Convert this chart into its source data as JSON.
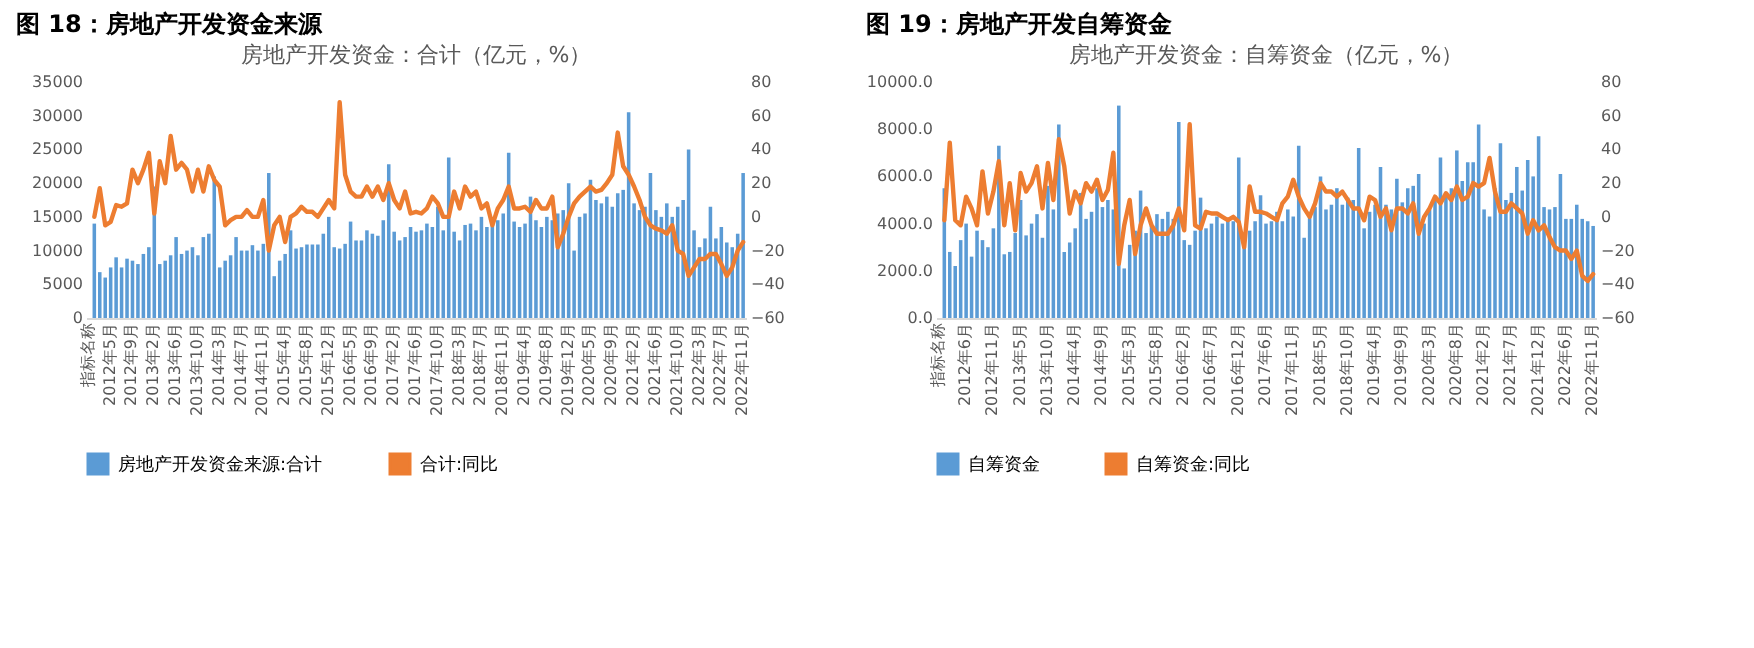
{
  "chart_data": [
    {
      "type": "bar",
      "title": "图 18：房地产开发资金来源",
      "subtitle": "房地产开发资金：合计（亿元，%）",
      "legend": "bottom",
      "categories": [
        "指标名称",
        null,
        null,
        null,
        "2012年5月",
        null,
        null,
        null,
        "2012年9月",
        null,
        null,
        null,
        "2013年2月",
        null,
        null,
        null,
        "2013年6月",
        null,
        null,
        null,
        "2013年10月",
        null,
        null,
        null,
        "2014年3月",
        null,
        null,
        null,
        "2014年7月",
        null,
        null,
        null,
        "2014年11月",
        null,
        null,
        null,
        "2015年4月",
        null,
        null,
        null,
        "2015年8月",
        null,
        null,
        null,
        "2015年12月",
        null,
        null,
        null,
        "2016年5月",
        null,
        null,
        null,
        "2016年9月",
        null,
        null,
        null,
        "2017年2月",
        null,
        null,
        null,
        "2017年6月",
        null,
        null,
        null,
        "2017年10月",
        null,
        null,
        null,
        "2018年3月",
        null,
        null,
        null,
        "2018年7月",
        null,
        null,
        null,
        "2018年11月",
        null,
        null,
        null,
        "2019年4月",
        null,
        null,
        null,
        "2019年8月",
        null,
        null,
        null,
        "2019年12月",
        null,
        null,
        null,
        "2020年5月",
        null,
        null,
        null,
        "2020年9月",
        null,
        null,
        null,
        "2021年2月",
        null,
        null,
        null,
        "2021年6月",
        null,
        null,
        null,
        "2021年10月",
        null,
        null,
        null,
        "2022年3月",
        null,
        null,
        null,
        "2022年7月",
        null,
        null,
        null,
        "2022年11月"
      ],
      "ylim": [
        0,
        35000
      ],
      "yticks": [
        0,
        5000,
        10000,
        15000,
        20000,
        25000,
        30000,
        35000
      ],
      "y2lim": [
        -60,
        80
      ],
      "y2ticks": [
        -60,
        -40,
        -20,
        0,
        20,
        40,
        60,
        80
      ],
      "series": [
        {
          "name": "房地产开发资金来源:合计",
          "color": "#5b9bd5",
          "values": [
            null,
            14000,
            6800,
            6000,
            7500,
            9000,
            7500,
            8800,
            8500,
            8000,
            9500,
            10500,
            19500,
            8000,
            8500,
            9300,
            12000,
            9500,
            10000,
            10500,
            9300,
            12000,
            12500,
            21000,
            7500,
            8500,
            9300,
            12000,
            10000,
            10000,
            10800,
            10000,
            11000,
            21500,
            6200,
            8500,
            9500,
            13000,
            10300,
            10500,
            10900,
            10900,
            10900,
            12500,
            15000,
            10500,
            10300,
            11000,
            14300,
            11500,
            11500,
            13000,
            12500,
            12200,
            14500,
            22800,
            12800,
            11500,
            12000,
            13500,
            12800,
            13000,
            14000,
            13500,
            16500,
            13000,
            23800,
            12800,
            11500,
            13800,
            14000,
            13000,
            15000,
            13500,
            14000,
            14500,
            15500,
            24500,
            14300,
            13500,
            14000,
            18000,
            14500,
            13500,
            15000,
            14500,
            15500,
            16000,
            20000,
            10000,
            15000,
            15500,
            20500,
            17500,
            17000,
            18000,
            16500,
            18500,
            19000,
            30500,
            17000,
            16000,
            16500,
            21500,
            16000,
            15000,
            17000,
            15000,
            16500,
            17500,
            25000,
            13000,
            10500,
            11800,
            16500,
            11800,
            13500,
            11200,
            10500,
            12500,
            21500
          ]
        },
        {
          "name": "合计:同比",
          "type": "line",
          "axis": "y2",
          "color": "#ed7d31",
          "values": [
            null,
            0,
            17,
            -5,
            -3,
            7,
            6,
            8,
            28,
            20,
            28,
            38,
            2,
            33,
            20,
            48,
            28,
            32,
            28,
            15,
            28,
            15,
            30,
            22,
            18,
            -5,
            -2,
            0,
            0,
            4,
            0,
            0,
            10,
            -20,
            -5,
            0,
            -15,
            0,
            2,
            6,
            3,
            3,
            0,
            5,
            10,
            5,
            68,
            25,
            15,
            12,
            12,
            18,
            12,
            18,
            10,
            20,
            10,
            5,
            15,
            2,
            3,
            2,
            5,
            12,
            8,
            0,
            0,
            15,
            5,
            18,
            12,
            15,
            5,
            8,
            -5,
            5,
            10,
            18,
            5,
            5,
            6,
            3,
            10,
            5,
            5,
            12,
            -18,
            -10,
            0,
            8,
            12,
            15,
            18,
            15,
            16,
            20,
            25,
            50,
            30,
            25,
            18,
            10,
            0,
            -5,
            -7,
            -8,
            -10,
            -5,
            -20,
            -22,
            -35,
            -30,
            -25,
            -25,
            -22,
            -22,
            -28,
            -35,
            -30,
            -20,
            -15
          ]
        }
      ]
    },
    {
      "type": "bar",
      "title": "图 19：房地产开发自筹资金",
      "subtitle": "房地产开发资金：自筹资金（亿元，%）",
      "legend": "bottom",
      "categories": [
        "指标名称",
        null,
        null,
        null,
        null,
        "2012年6月",
        null,
        null,
        null,
        null,
        "2012年11月",
        null,
        null,
        null,
        null,
        "2013年5月",
        null,
        null,
        null,
        null,
        "2013年10月",
        null,
        null,
        null,
        null,
        "2014年4月",
        null,
        null,
        null,
        null,
        "2014年9月",
        null,
        null,
        null,
        null,
        "2015年3月",
        null,
        null,
        null,
        null,
        "2015年8月",
        null,
        null,
        null,
        null,
        "2016年2月",
        null,
        null,
        null,
        null,
        "2016年7月",
        null,
        null,
        null,
        null,
        "2016年12月",
        null,
        null,
        null,
        null,
        "2017年6月",
        null,
        null,
        null,
        null,
        "2017年11月",
        null,
        null,
        null,
        null,
        "2018年5月",
        null,
        null,
        null,
        null,
        "2018年10月",
        null,
        null,
        null,
        null,
        "2019年4月",
        null,
        null,
        null,
        null,
        "2019年9月",
        null,
        null,
        null,
        null,
        "2020年3月",
        null,
        null,
        null,
        null,
        "2020年8月",
        null,
        null,
        null,
        null,
        "2021年2月",
        null,
        null,
        null,
        null,
        "2021年7月",
        null,
        null,
        null,
        null,
        "2021年12月",
        null,
        null,
        null,
        null,
        "2022年6月",
        null,
        null,
        null,
        null,
        "2022年11月"
      ],
      "ylim": [
        0,
        10000
      ],
      "yticks": [
        {
          "value": 0,
          "label": "0.0"
        },
        {
          "value": 2000,
          "label": "2000.0"
        },
        {
          "value": 4000,
          "label": "4000.0"
        },
        {
          "value": 6000,
          "label": "6000.0"
        },
        {
          "value": 8000,
          "label": "8000.0"
        },
        {
          "value": 10000,
          "label": "10000.0"
        }
      ],
      "y2lim": [
        -60,
        80
      ],
      "y2ticks": [
        -60,
        -40,
        -20,
        0,
        20,
        40,
        60,
        80
      ],
      "series": [
        {
          "name": "自筹资金",
          "color": "#5b9bd5",
          "values": [
            null,
            5500,
            2800,
            2200,
            3300,
            4000,
            2600,
            3700,
            3300,
            3000,
            3800,
            7300,
            2700,
            2800,
            3600,
            5000,
            3500,
            4000,
            4400,
            3400,
            5600,
            4600,
            8200,
            2800,
            3200,
            3800,
            5300,
            4200,
            4500,
            5500,
            4700,
            5000,
            4600,
            9000,
            2100,
            3100,
            3700,
            5400,
            3600,
            3900,
            4400,
            4200,
            4500,
            4200,
            8300,
            3300,
            3100,
            3700,
            5100,
            3800,
            4000,
            4300,
            4000,
            4200,
            4100,
            6800,
            3200,
            3700,
            4100,
            5200,
            4000,
            4100,
            4500,
            4100,
            4600,
            4300,
            7300,
            3400,
            4300,
            4700,
            6000,
            4600,
            4800,
            5500,
            4800,
            5100,
            5000,
            7200,
            3800,
            4500,
            4800,
            6400,
            4800,
            4600,
            5900,
            4900,
            5500,
            5600,
            6100,
            4000,
            4600,
            5000,
            6800,
            5200,
            5500,
            7100,
            5800,
            6600,
            6600,
            8200,
            4600,
            4300,
            5500,
            7400,
            5000,
            5300,
            6400,
            5400,
            6700,
            6000,
            7700,
            4700,
            4600,
            4700,
            6100,
            4200,
            4200,
            4800,
            4200,
            4100,
            3900
          ]
        },
        {
          "name": "自筹资金:同比",
          "type": "line",
          "axis": "y2",
          "color": "#ed7d31",
          "values": [
            null,
            -2,
            44,
            -2,
            -5,
            12,
            5,
            -5,
            27,
            2,
            15,
            33,
            -5,
            20,
            -8,
            26,
            15,
            20,
            30,
            5,
            32,
            10,
            46,
            30,
            2,
            15,
            8,
            20,
            15,
            22,
            10,
            16,
            38,
            -28,
            -5,
            10,
            -22,
            -5,
            5,
            -5,
            -10,
            -10,
            -10,
            -5,
            5,
            -8,
            55,
            -5,
            -7,
            3,
            2,
            2,
            0,
            -2,
            0,
            -3,
            -18,
            18,
            3,
            3,
            2,
            0,
            -2,
            8,
            12,
            22,
            12,
            5,
            0,
            8,
            20,
            15,
            15,
            12,
            15,
            10,
            5,
            5,
            -2,
            12,
            10,
            0,
            5,
            -8,
            5,
            5,
            2,
            8,
            -10,
            0,
            5,
            12,
            8,
            14,
            10,
            18,
            10,
            12,
            20,
            18,
            20,
            35,
            15,
            3,
            3,
            8,
            5,
            2,
            -10,
            -2,
            -8,
            -5,
            -12,
            -18,
            -20,
            -20,
            -25,
            -20,
            -35,
            -38,
            -34
          ]
        }
      ]
    }
  ]
}
